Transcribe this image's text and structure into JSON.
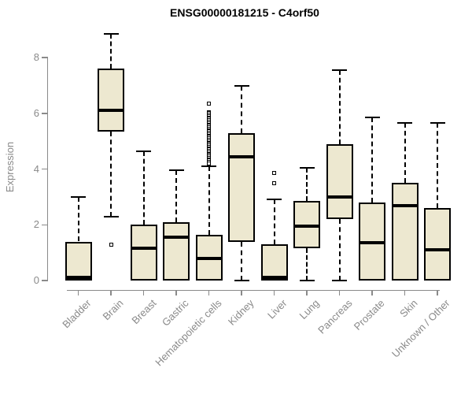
{
  "chart_data": {
    "type": "box",
    "title": "ENSG00000181215 - C4orf50",
    "xlabel": "",
    "ylabel": "Expression",
    "ylim": [
      0,
      8.9
    ],
    "yticks": [
      0,
      2,
      4,
      6,
      8
    ],
    "grid": false,
    "legend": false,
    "categories": [
      "Bladder",
      "Brain",
      "Breast",
      "Gastric",
      "Hematopoietic cells",
      "Kidney",
      "Liver",
      "Lung",
      "Pancreas",
      "Prostate",
      "Skin",
      "Unknown / Other"
    ],
    "series": [
      {
        "category": "Bladder",
        "low": 0,
        "q1": 0,
        "median": 0.1,
        "q3": 1.4,
        "high": 3.0,
        "outliers": []
      },
      {
        "category": "Brain",
        "low": 2.3,
        "q1": 5.35,
        "median": 6.1,
        "q3": 7.6,
        "high": 8.85,
        "outliers": [
          1.3
        ]
      },
      {
        "category": "Breast",
        "low": 0,
        "q1": 0,
        "median": 1.15,
        "q3": 2.0,
        "high": 4.65,
        "outliers": []
      },
      {
        "category": "Gastric",
        "low": 0,
        "q1": 0,
        "median": 1.55,
        "q3": 2.1,
        "high": 3.95,
        "outliers": []
      },
      {
        "category": "Hematopoietic cells",
        "low": 0,
        "q1": 0,
        "median": 0.8,
        "q3": 1.65,
        "high": 4.1,
        "outliers": [
          6.35,
          6.05,
          6.0,
          5.95,
          5.9,
          5.85,
          5.8,
          5.75,
          5.7,
          5.65,
          5.6,
          5.55,
          5.5,
          5.45,
          5.4,
          5.35,
          5.3,
          5.25,
          5.2,
          5.15,
          5.1,
          5.05,
          5.0,
          4.95,
          4.9,
          4.85,
          4.8,
          4.75,
          4.7,
          4.65,
          4.6,
          4.55,
          4.5,
          4.45,
          4.4,
          4.35,
          4.3,
          4.25,
          4.2
        ]
      },
      {
        "category": "Kidney",
        "low": 0,
        "q1": 1.4,
        "median": 4.45,
        "q3": 5.3,
        "high": 7.0,
        "outliers": []
      },
      {
        "category": "Liver",
        "low": 0,
        "q1": 0,
        "median": 0.1,
        "q3": 1.3,
        "high": 2.9,
        "outliers": [
          3.85,
          3.5
        ]
      },
      {
        "category": "Lung",
        "low": 0,
        "q1": 1.15,
        "median": 1.95,
        "q3": 2.85,
        "high": 4.05,
        "outliers": []
      },
      {
        "category": "Pancreas",
        "low": 0,
        "q1": 2.2,
        "median": 3.0,
        "q3": 4.9,
        "high": 7.55,
        "outliers": []
      },
      {
        "category": "Prostate",
        "low": 0,
        "q1": 0,
        "median": 1.35,
        "q3": 2.8,
        "high": 5.85,
        "outliers": []
      },
      {
        "category": "Skin",
        "low": 0,
        "q1": 0,
        "median": 2.7,
        "q3": 3.5,
        "high": 5.65,
        "outliers": []
      },
      {
        "category": "Unknown / Other",
        "low": 0,
        "q1": 0,
        "median": 1.1,
        "q3": 2.6,
        "high": 5.65,
        "outliers": []
      }
    ],
    "colors": {
      "box_fill": "#EDE8D0",
      "box_border": "#000000",
      "median": "#000000",
      "whisker": "#000000",
      "axis": "#8A8A8A",
      "tick_label": "#8A8A8A",
      "title": "#000000"
    }
  }
}
